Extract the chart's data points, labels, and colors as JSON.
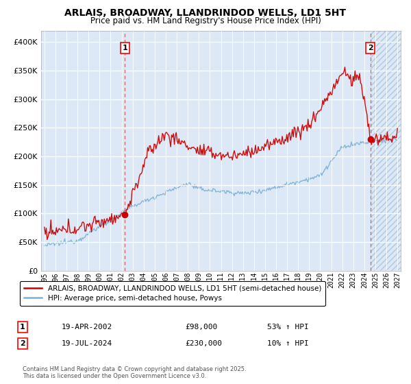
{
  "title": "ARLAIS, BROADWAY, LLANDRINDOD WELLS, LD1 5HT",
  "subtitle": "Price paid vs. HM Land Registry's House Price Index (HPI)",
  "ylim": [
    0,
    420000
  ],
  "yticks": [
    0,
    50000,
    100000,
    150000,
    200000,
    250000,
    300000,
    350000,
    400000
  ],
  "bg_color": "#dce8f5",
  "grid_color": "#ffffff",
  "sale1_x": 2002.3,
  "sale1_y": 98000,
  "sale2_x": 2024.54,
  "sale2_y": 230000,
  "sale1_label": "19-APR-2002",
  "sale1_price": "£98,000",
  "sale1_hpi": "53% ↑ HPI",
  "sale2_label": "19-JUL-2024",
  "sale2_price": "£230,000",
  "sale2_hpi": "10% ↑ HPI",
  "legend_line1": "ARLAIS, BROADWAY, LLANDRINDOD WELLS, LD1 5HT (semi-detached house)",
  "legend_line2": "HPI: Average price, semi-detached house, Powys",
  "footer": "Contains HM Land Registry data © Crown copyright and database right 2025.\nThis data is licensed under the Open Government Licence v3.0.",
  "red_color": "#cc0000",
  "blue_color": "#7bafd4",
  "hatch_color": "#c8d8e8",
  "xlim_left": 1994.7,
  "xlim_right": 2027.3
}
